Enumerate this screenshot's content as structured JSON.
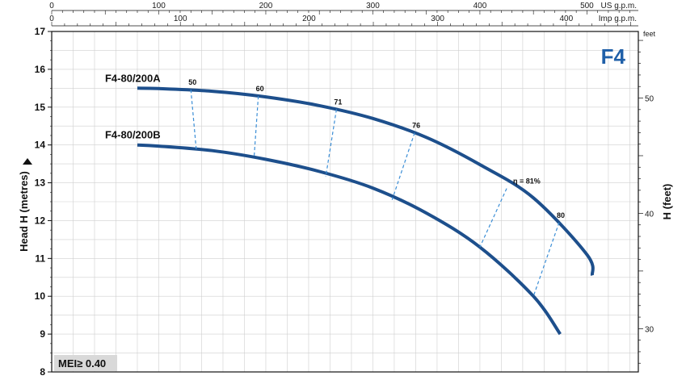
{
  "chart_data": {
    "type": "line",
    "badge": "F4",
    "ylabel": "Head H (metres)",
    "ylim": [
      8,
      17
    ],
    "yticks": [
      8,
      9,
      10,
      11,
      12,
      13,
      14,
      15,
      16,
      17
    ],
    "y2label": "H (feet)",
    "y2_unit": "feet",
    "y2ticks": [
      30,
      40,
      50
    ],
    "top_axis_1": {
      "unit": "US g.p.m.",
      "ticks": [
        0,
        100,
        200,
        300,
        400,
        500
      ],
      "range": [
        0,
        548
      ]
    },
    "top_axis_2": {
      "unit": "Imp g.p.m.",
      "ticks": [
        0,
        100,
        200,
        300,
        400
      ],
      "range": [
        0,
        456
      ]
    },
    "series": [
      {
        "name": "F4-80/200A",
        "x": [
          80,
          100,
          150,
          200,
          250,
          300,
          350,
          400,
          450,
          500,
          505
        ],
        "y": [
          15.5,
          15.49,
          15.42,
          15.27,
          15.04,
          14.7,
          14.2,
          13.48,
          12.6,
          11.1,
          10.55
        ]
      },
      {
        "name": "F4-80/200B",
        "x": [
          80,
          100,
          150,
          200,
          250,
          300,
          350,
          400,
          450,
          475
        ],
        "y": [
          14.0,
          13.97,
          13.85,
          13.62,
          13.3,
          12.86,
          12.2,
          11.3,
          10.0,
          9.0
        ]
      }
    ],
    "efficiency_lines": [
      {
        "label": "50",
        "top": [
          130,
          15.46
        ],
        "bottom": [
          135,
          13.89
        ]
      },
      {
        "label": "60",
        "top": [
          193,
          15.29
        ],
        "bottom": [
          189,
          13.65
        ]
      },
      {
        "label": "71",
        "top": [
          266,
          14.94
        ],
        "bottom": [
          256,
          13.16
        ]
      },
      {
        "label": "76",
        "top": [
          339,
          14.32
        ],
        "bottom": [
          318,
          12.55
        ]
      },
      {
        "label": "η = 81%",
        "top": [
          425,
          12.85
        ],
        "bottom": [
          400,
          11.3
        ]
      },
      {
        "label": "80",
        "top": [
          474,
          11.95
        ],
        "bottom": [
          450,
          10.0
        ]
      }
    ],
    "mei": "MEI≥ 0.40",
    "grid": true
  }
}
